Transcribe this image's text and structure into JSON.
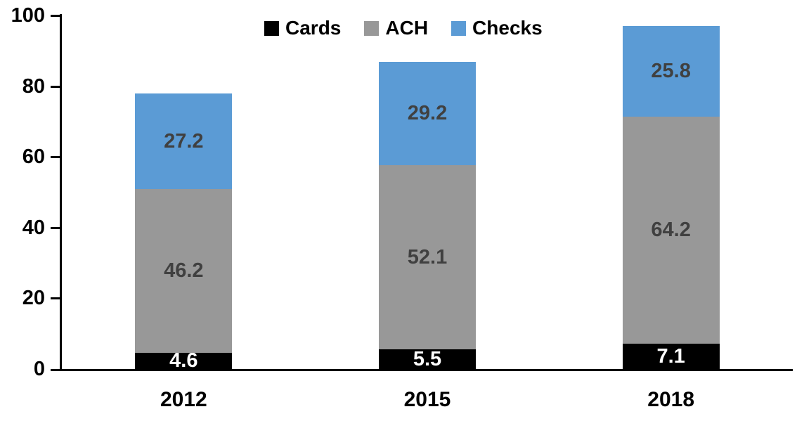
{
  "chart_data": {
    "type": "bar",
    "stacked": true,
    "title": "",
    "xlabel": "",
    "ylabel": "",
    "categories": [
      "2012",
      "2015",
      "2018"
    ],
    "series": [
      {
        "name": "Cards",
        "color": "#000000",
        "label_color": "#ffffff",
        "values": [
          4.6,
          5.5,
          7.1
        ]
      },
      {
        "name": "ACH",
        "color": "#989898",
        "label_color": "#404040",
        "values": [
          46.2,
          52.1,
          64.2
        ]
      },
      {
        "name": "Checks",
        "color": "#5B9BD5",
        "label_color": "#404040",
        "values": [
          27.2,
          29.2,
          25.8
        ]
      }
    ],
    "totals": [
      78.0,
      86.8,
      97.1
    ],
    "ylim": [
      0,
      100
    ],
    "yticks": [
      0,
      20,
      40,
      60,
      80,
      100
    ],
    "grid": false,
    "legend_position": "top",
    "axis_color": "#000000",
    "background_color": "#ffffff",
    "value_label_decimals": 1
  }
}
